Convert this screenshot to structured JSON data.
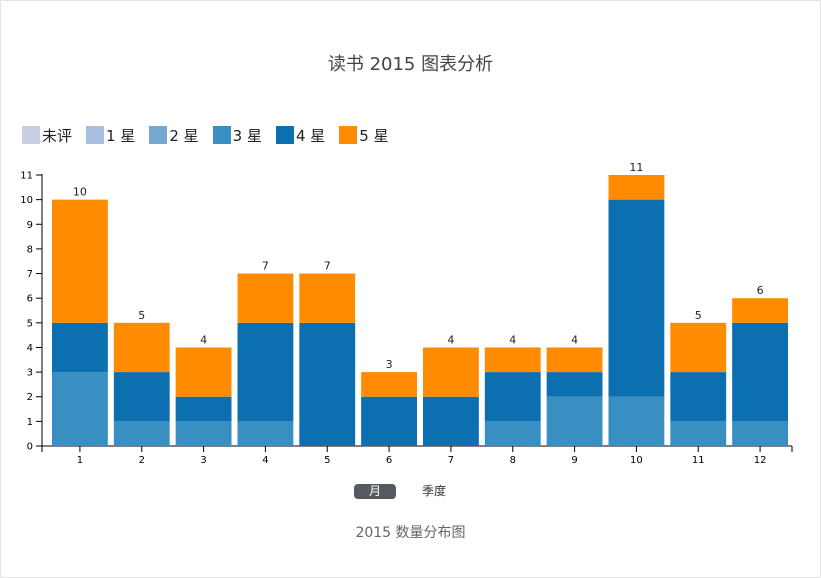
{
  "title": "读书 2015 图表分析",
  "caption": "2015 数量分布图",
  "toggle": {
    "month_label": "月",
    "quarter_label": "季度",
    "selected": "月"
  },
  "legend": [
    {
      "label": "未评",
      "color": "#cbcde3"
    },
    {
      "label": "1 星",
      "color": "#a8bfde"
    },
    {
      "label": "2 星",
      "color": "#75a8d0"
    },
    {
      "label": "3 星",
      "color": "#3a8fc2"
    },
    {
      "label": "4 星",
      "color": "#0b6fb0"
    },
    {
      "label": "5 星",
      "color": "#ff8c00"
    }
  ],
  "chart_data": {
    "type": "bar",
    "stacked": true,
    "title": "读书 2015 图表分析",
    "xlabel": "",
    "ylabel": "",
    "ylim": [
      0,
      11
    ],
    "y_ticks": [
      0,
      1,
      2,
      3,
      4,
      5,
      6,
      7,
      8,
      9,
      10,
      11
    ],
    "categories": [
      "1",
      "2",
      "3",
      "4",
      "5",
      "6",
      "7",
      "8",
      "9",
      "10",
      "11",
      "12"
    ],
    "series": [
      {
        "name": "未评",
        "color": "#cbcde3",
        "values": [
          0,
          0,
          0,
          0,
          0,
          0,
          0,
          0,
          0,
          0,
          0,
          0
        ]
      },
      {
        "name": "1 星",
        "color": "#a8bfde",
        "values": [
          0,
          0,
          0,
          0,
          0,
          0,
          0,
          0,
          0,
          0,
          0,
          0
        ]
      },
      {
        "name": "2 星",
        "color": "#75a8d0",
        "values": [
          0,
          0,
          0,
          0,
          0,
          0,
          0,
          0,
          0,
          0,
          0,
          0
        ]
      },
      {
        "name": "3 星",
        "color": "#3a8fc2",
        "values": [
          3,
          1,
          1,
          1,
          0,
          0,
          0,
          1,
          2,
          2,
          1,
          1
        ]
      },
      {
        "name": "4 星",
        "color": "#0b6fb0",
        "values": [
          2,
          2,
          1,
          4,
          5,
          2,
          2,
          2,
          1,
          8,
          2,
          4
        ]
      },
      {
        "name": "5 星",
        "color": "#ff8c00",
        "values": [
          5,
          2,
          2,
          2,
          2,
          1,
          2,
          1,
          1,
          1,
          2,
          1
        ]
      }
    ],
    "totals": [
      10,
      5,
      4,
      7,
      7,
      3,
      4,
      4,
      4,
      11,
      5,
      6
    ],
    "legend_position": "top-left",
    "grid": false
  }
}
